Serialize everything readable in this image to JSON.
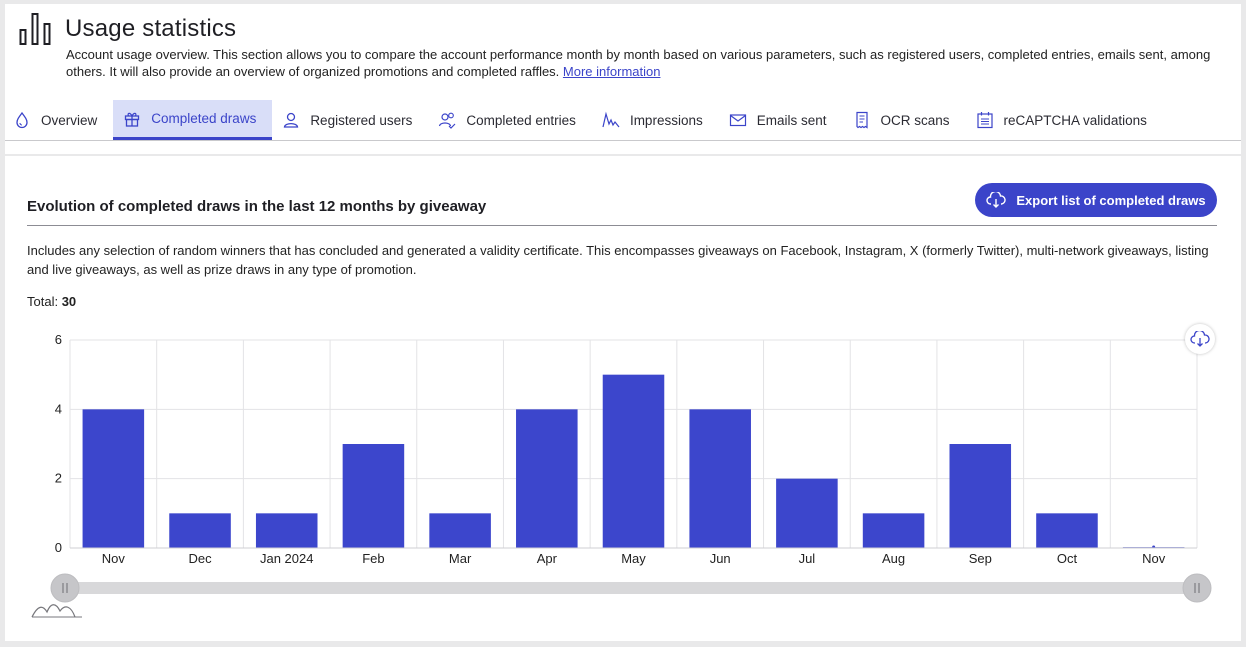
{
  "header": {
    "title": "Usage statistics",
    "intro_text": "Account usage overview. This section allows you to compare the account performance month by month based on various parameters, such as registered users, completed entries, emails sent, among others. It will also provide an overview of organized promotions and completed raffles.",
    "intro_link": "More information"
  },
  "tabs": [
    {
      "label": "Overview",
      "icon": "drop-icon"
    },
    {
      "label": "Completed draws",
      "icon": "gift-icon",
      "active": true
    },
    {
      "label": "Registered users",
      "icon": "user-icon"
    },
    {
      "label": "Completed entries",
      "icon": "users-check-icon"
    },
    {
      "label": "Impressions",
      "icon": "line-spark-icon"
    },
    {
      "label": "Emails sent",
      "icon": "envelope-icon"
    },
    {
      "label": "OCR scans",
      "icon": "receipt-icon"
    },
    {
      "label": "reCAPTCHA validations",
      "icon": "calendar-list-icon"
    }
  ],
  "panel": {
    "chart_title": "Evolution of completed draws in the last 12 months by giveaway",
    "export_label": "Export list of completed draws",
    "description": "Includes any selection of random winners that has concluded and generated a validity certificate. This encompasses giveaways on Facebook, Instagram, X (formerly Twitter), multi-network giveaways, listing and live giveaways, as well as prize draws in any type of promotion.",
    "total_label": "Total:",
    "total_value": "30"
  },
  "colors": {
    "accent": "#3b44c9",
    "bar": "#3c46cc",
    "active_tab_bg": "#d9def8"
  },
  "chart_data": {
    "type": "bar",
    "categories": [
      "Nov",
      "Dec",
      "Jan 2024",
      "Feb",
      "Mar",
      "Apr",
      "May",
      "Jun",
      "Jul",
      "Aug",
      "Sep",
      "Oct",
      "Nov"
    ],
    "values": [
      4,
      1,
      1,
      3,
      1,
      4,
      5,
      4,
      2,
      1,
      3,
      1,
      0
    ],
    "yticks": [
      0,
      2,
      4,
      6
    ],
    "ylim": [
      0,
      6
    ],
    "title": "",
    "xlabel": "",
    "ylabel": "",
    "grid": true,
    "range_slider": true
  }
}
